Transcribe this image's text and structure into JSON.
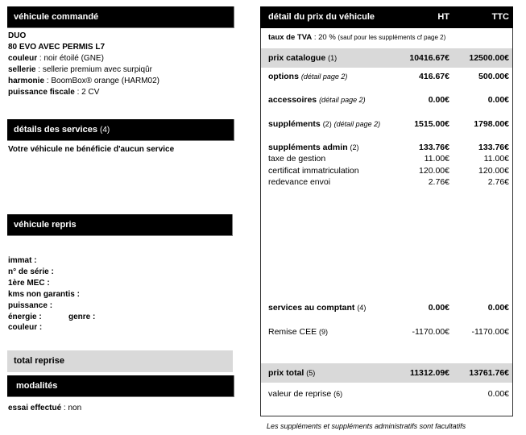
{
  "ordered_vehicle": {
    "title": "véhicule commandé",
    "model": "DUO",
    "version": "80 EVO AVEC PERMIS L7",
    "attributes": [
      {
        "label": "couleur",
        "value": "noir étoilé (GNE)"
      },
      {
        "label": "sellerie",
        "value": "sellerie premium avec surpiqûr"
      },
      {
        "label": "harmonie",
        "value": "BoomBox® orange (HARM02)"
      },
      {
        "label": "puissance fiscale",
        "value": "2 CV"
      }
    ]
  },
  "services": {
    "title": "détails des services",
    "ref": "(4)",
    "text": "Votre véhicule ne bénéficie d'aucun service"
  },
  "tradein": {
    "title": "véhicule repris",
    "fields": [
      "immat :",
      "n° de série :",
      "1ère MEC :",
      "kms non garantis :",
      "puissance :",
      "énergie :",
      "genre :",
      "couleur :"
    ],
    "total_label": "total reprise"
  },
  "terms": {
    "title": "modalités",
    "label": "essai effectué",
    "value": "non"
  },
  "price": {
    "title": "détail du prix du véhicule",
    "col_ht": "HT",
    "col_ttc": "TTC",
    "vat_label": "taux de TVA",
    "vat_value": ": 20 %",
    "vat_note": "(sauf pour les suppléments cf page 2)",
    "rows": [
      {
        "label": "prix catalogue",
        "ref": "(1)",
        "note": "",
        "ht": "10416.67€",
        "ttc": "12500.00€"
      },
      {
        "label": "options",
        "ref": "",
        "note": "(détail page 2)",
        "ht": "416.67€",
        "ttc": "500.00€"
      },
      {
        "label": "accessoires",
        "ref": "",
        "note": "(détail page 2)",
        "ht": "0.00€",
        "ttc": "0.00€"
      },
      {
        "label": "suppléments",
        "ref": "(2)",
        "note": "(détail page 2)",
        "ht": "1515.00€",
        "ttc": "1798.00€"
      },
      {
        "label": "suppléments admin",
        "ref": "(2)",
        "note": "",
        "ht": "133.76€",
        "ttc": "133.76€"
      },
      {
        "label": "taxe de gestion",
        "ref": "",
        "note": "",
        "ht": "11.00€",
        "ttc": "11.00€"
      },
      {
        "label": "certificat immatriculation",
        "ref": "",
        "note": "",
        "ht": "120.00€",
        "ttc": "120.00€"
      },
      {
        "label": "redevance envoi",
        "ref": "",
        "note": "",
        "ht": "2.76€",
        "ttc": "2.76€"
      },
      {
        "label": "services au comptant",
        "ref": "(4)",
        "note": "",
        "ht": "0.00€",
        "ttc": "0.00€"
      },
      {
        "label": "Remise CEE",
        "ref": "(9)",
        "note": "",
        "ht": "-1170.00€",
        "ttc": "-1170.00€"
      },
      {
        "label": "prix total",
        "ref": "(5)",
        "note": "",
        "ht": "11312.09€",
        "ttc": "13761.76€"
      },
      {
        "label": "valeur de reprise",
        "ref": "(6)",
        "note": "",
        "ht": "",
        "ttc": "0.00€"
      }
    ]
  },
  "footnote": "Les suppléments et suppléments administratifs sont facultatifs"
}
